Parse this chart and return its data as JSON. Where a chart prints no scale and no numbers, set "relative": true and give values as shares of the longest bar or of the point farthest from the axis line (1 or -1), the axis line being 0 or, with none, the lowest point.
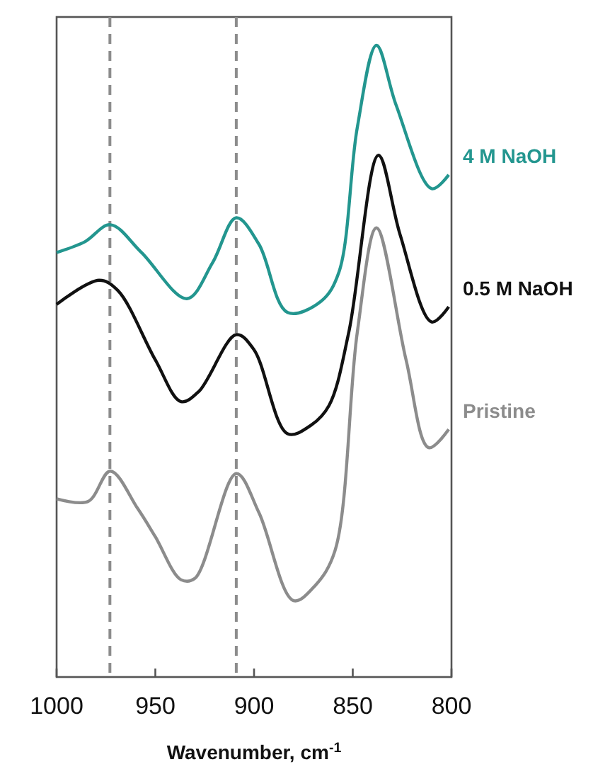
{
  "chart_data": {
    "type": "line",
    "relative": true,
    "xlabel": "Wavenumber, cm$^{-1}$",
    "xlim": [
      1000,
      800
    ],
    "xticks": [
      1000,
      950,
      900,
      850,
      800
    ],
    "grid": false,
    "line_style": "solid",
    "marker": "none",
    "ref_lines": [
      {
        "axis": "x",
        "value": 973,
        "color": "#8c8c8c",
        "line_style": "dashed"
      },
      {
        "axis": "x",
        "value": 909,
        "color": "#8c8c8c",
        "line_style": "dashed"
      }
    ],
    "series": [
      {
        "name": "4 M NaOH",
        "color": "#23968f",
        "x": [
          1000,
          985.7,
          972.8,
          957,
          934,
          921,
          909,
          897.5,
          883,
          866,
          857,
          847.7,
          838,
          828,
          810,
          801.4
        ],
        "values": [
          0.672,
          0.689,
          0.716,
          0.672,
          0.599,
          0.656,
          0.727,
          0.685,
          0.577,
          0.595,
          0.641,
          0.87,
          1,
          0.905,
          0.773,
          0.795
        ]
      },
      {
        "name": "0.5 M NaOH",
        "color": "#111111",
        "x": [
          1000,
          978.5,
          969,
          950,
          937,
          928,
          909,
          900,
          883,
          871,
          862,
          852,
          837,
          826,
          810,
          801.4
        ],
        "values": [
          0.59,
          0.628,
          0.612,
          0.502,
          0.436,
          0.452,
          0.542,
          0.518,
          0.385,
          0.399,
          0.43,
          0.546,
          0.826,
          0.7,
          0.562,
          0.586
        ]
      },
      {
        "name": "Pristine",
        "color": "#8c8c8c",
        "x": [
          1000,
          984,
          972.8,
          959,
          950,
          937,
          930,
          909,
          897.5,
          880,
          869,
          859,
          847.7,
          838,
          823,
          811.5,
          801.4
        ],
        "values": [
          0.282,
          0.278,
          0.326,
          0.267,
          0.222,
          0.154,
          0.156,
          0.322,
          0.26,
          0.121,
          0.145,
          0.2,
          0.546,
          0.711,
          0.502,
          0.363,
          0.392
        ]
      }
    ]
  }
}
